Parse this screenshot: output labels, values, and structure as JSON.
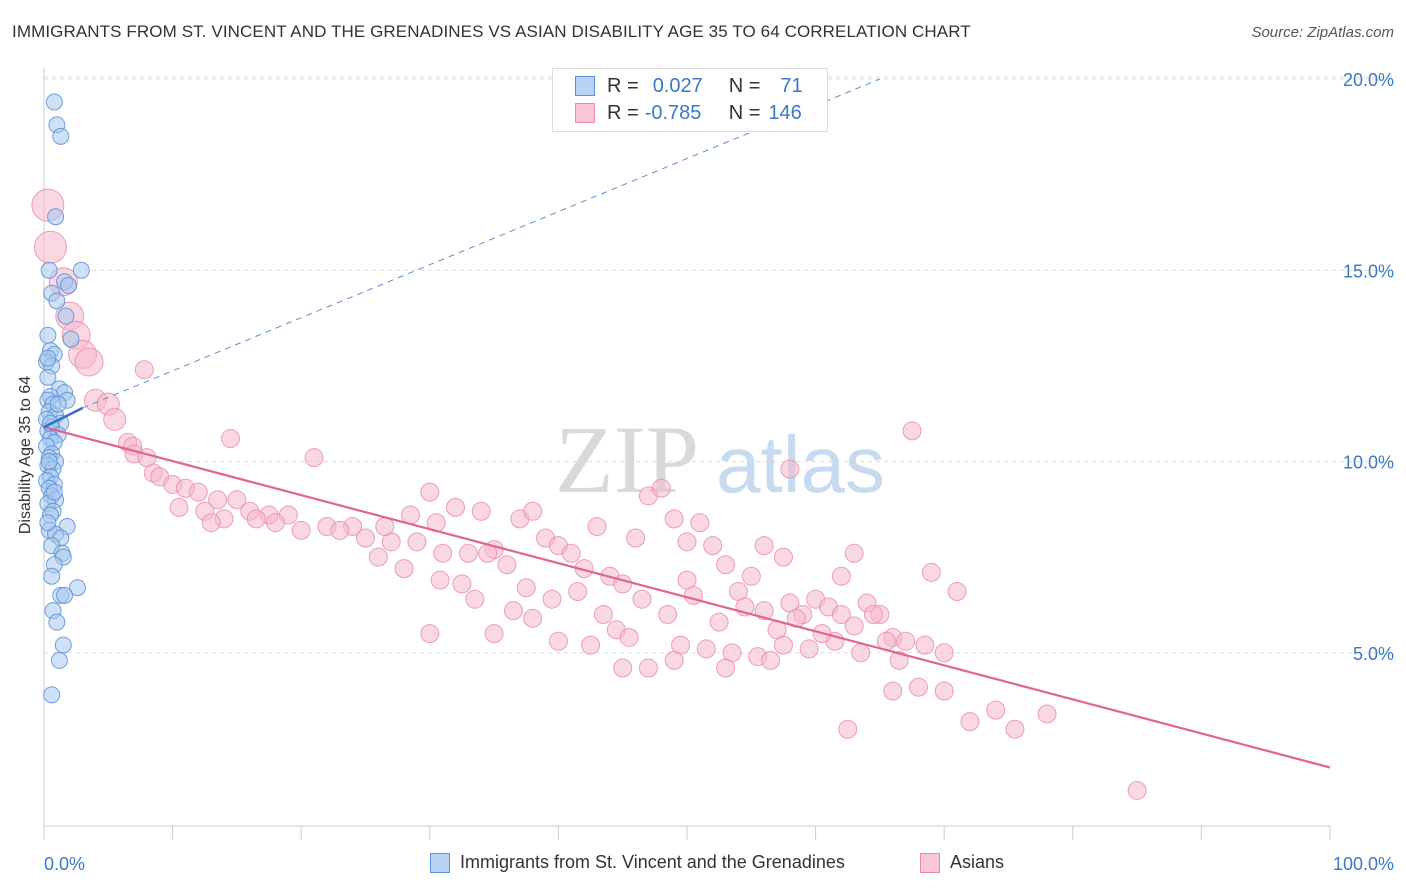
{
  "header": {
    "title": "IMMIGRANTS FROM ST. VINCENT AND THE GRENADINES VS ASIAN DISABILITY AGE 35 TO 64 CORRELATION CHART",
    "source": "Source: ZipAtlas.com"
  },
  "watermark": {
    "zip": "ZIP",
    "atlas": "atlas"
  },
  "legend": {
    "rows": [
      {
        "r_label": "R =",
        "r_value": "0.027",
        "n_label": "N =",
        "n_value": "71"
      },
      {
        "r_label": "R =",
        "r_value": "-0.785",
        "n_label": "N =",
        "n_value": "146"
      }
    ]
  },
  "bottom_legend": {
    "series1": "Immigrants from St. Vincent and the Grenadines",
    "series2": "Asians"
  },
  "colors": {
    "blue_fill": "#a8c8ef",
    "blue_stroke": "#5b8fd6",
    "blue_line": "#2f6fcf",
    "pink_fill": "#f6b8cc",
    "pink_stroke": "#e88aa8",
    "pink_line": "#e0648f",
    "tick_text": "#3a78c8",
    "grid": "#dddddd"
  },
  "chart_data": {
    "type": "scatter",
    "title": "IMMIGRANTS FROM ST. VINCENT AND THE GRENADINES VS ASIAN DISABILITY AGE 35 TO 64 CORRELATION CHART",
    "xlabel": "",
    "ylabel": "Disability Age 35 to 64",
    "xlim": [
      0,
      100
    ],
    "ylim": [
      0,
      20.5
    ],
    "x_tick_labels": [
      "0.0%",
      "100.0%"
    ],
    "y_ticks": [
      5,
      10,
      15,
      20
    ],
    "y_tick_labels": [
      "5.0%",
      "10.0%",
      "15.0%",
      "20.0%"
    ],
    "grid": true,
    "legend_position": "top-center",
    "series": [
      {
        "name": "Immigrants from St. Vincent and the Grenadines",
        "color": "#a8c8ef",
        "trend": {
          "x": [
            0,
            3
          ],
          "y": [
            10.9,
            11.4
          ],
          "dashed_extension_to": [
            65,
            20.0
          ]
        },
        "points": [
          [
            0.8,
            19.4
          ],
          [
            1.0,
            18.8
          ],
          [
            1.3,
            18.5
          ],
          [
            0.9,
            16.4
          ],
          [
            2.9,
            15.0
          ],
          [
            0.4,
            15.0
          ],
          [
            1.6,
            14.7
          ],
          [
            1.9,
            14.6
          ],
          [
            0.6,
            14.4
          ],
          [
            1.0,
            14.2
          ],
          [
            1.7,
            13.8
          ],
          [
            0.3,
            13.3
          ],
          [
            2.1,
            13.2
          ],
          [
            0.5,
            12.9
          ],
          [
            0.8,
            12.8
          ],
          [
            0.2,
            12.6
          ],
          [
            0.6,
            12.5
          ],
          [
            0.3,
            12.2
          ],
          [
            1.2,
            11.9
          ],
          [
            1.6,
            11.8
          ],
          [
            0.5,
            11.7
          ],
          [
            0.3,
            11.6
          ],
          [
            0.7,
            11.5
          ],
          [
            1.8,
            11.6
          ],
          [
            0.4,
            11.3
          ],
          [
            0.9,
            11.2
          ],
          [
            0.2,
            11.1
          ],
          [
            1.3,
            11.0
          ],
          [
            0.6,
            10.9
          ],
          [
            0.3,
            10.8
          ],
          [
            1.1,
            10.7
          ],
          [
            0.5,
            10.6
          ],
          [
            0.8,
            10.5
          ],
          [
            0.2,
            10.4
          ],
          [
            0.6,
            10.2
          ],
          [
            0.4,
            10.1
          ],
          [
            0.9,
            10.0
          ],
          [
            0.3,
            9.9
          ],
          [
            0.7,
            9.8
          ],
          [
            0.5,
            9.6
          ],
          [
            0.2,
            9.5
          ],
          [
            0.8,
            9.4
          ],
          [
            0.4,
            9.3
          ],
          [
            0.6,
            9.1
          ],
          [
            0.9,
            9.0
          ],
          [
            0.3,
            8.9
          ],
          [
            0.7,
            8.7
          ],
          [
            0.5,
            8.6
          ],
          [
            1.8,
            8.3
          ],
          [
            0.4,
            8.2
          ],
          [
            0.9,
            8.1
          ],
          [
            1.3,
            8.0
          ],
          [
            0.6,
            7.8
          ],
          [
            1.4,
            7.6
          ],
          [
            1.5,
            7.5
          ],
          [
            0.8,
            7.3
          ],
          [
            2.6,
            6.7
          ],
          [
            1.3,
            6.5
          ],
          [
            1.6,
            6.5
          ],
          [
            0.7,
            6.1
          ],
          [
            1.0,
            5.8
          ],
          [
            1.5,
            5.2
          ],
          [
            1.2,
            4.8
          ],
          [
            0.6,
            3.9
          ],
          [
            0.3,
            12.7
          ],
          [
            0.5,
            11.0
          ],
          [
            1.1,
            11.5
          ],
          [
            0.4,
            10.0
          ],
          [
            0.8,
            9.2
          ],
          [
            0.3,
            8.4
          ],
          [
            0.6,
            7.0
          ]
        ]
      },
      {
        "name": "Asians",
        "color": "#f6b8cc",
        "trend": {
          "x": [
            0,
            100
          ],
          "y": [
            10.9,
            2.0
          ]
        },
        "points": [
          [
            0.3,
            16.7
          ],
          [
            0.5,
            15.6
          ],
          [
            1.5,
            14.7
          ],
          [
            2.0,
            13.8
          ],
          [
            2.5,
            13.3
          ],
          [
            3.0,
            12.8
          ],
          [
            3.5,
            12.6
          ],
          [
            7.8,
            12.4
          ],
          [
            4.0,
            11.6
          ],
          [
            5.0,
            11.5
          ],
          [
            5.5,
            11.1
          ],
          [
            14.5,
            10.6
          ],
          [
            6.5,
            10.5
          ],
          [
            6.9,
            10.4
          ],
          [
            7.0,
            10.2
          ],
          [
            8.0,
            10.1
          ],
          [
            21.0,
            10.1
          ],
          [
            8.5,
            9.7
          ],
          [
            9.0,
            9.6
          ],
          [
            10.0,
            9.4
          ],
          [
            11.0,
            9.3
          ],
          [
            12.0,
            9.2
          ],
          [
            13.5,
            9.0
          ],
          [
            15.0,
            9.0
          ],
          [
            10.5,
            8.8
          ],
          [
            12.5,
            8.7
          ],
          [
            16.0,
            8.7
          ],
          [
            17.5,
            8.6
          ],
          [
            19.0,
            8.6
          ],
          [
            14.0,
            8.5
          ],
          [
            16.5,
            8.5
          ],
          [
            18.0,
            8.4
          ],
          [
            22.0,
            8.3
          ],
          [
            24.0,
            8.3
          ],
          [
            13.0,
            8.4
          ],
          [
            20.0,
            8.2
          ],
          [
            23.0,
            8.2
          ],
          [
            25.0,
            8.0
          ],
          [
            27.0,
            7.9
          ],
          [
            28.5,
            8.6
          ],
          [
            30.0,
            9.2
          ],
          [
            32.0,
            8.8
          ],
          [
            34.0,
            8.7
          ],
          [
            30.5,
            8.4
          ],
          [
            26.5,
            8.3
          ],
          [
            29.0,
            7.9
          ],
          [
            31.0,
            7.6
          ],
          [
            33.0,
            7.6
          ],
          [
            35.0,
            7.7
          ],
          [
            37.0,
            8.5
          ],
          [
            38.0,
            8.7
          ],
          [
            39.0,
            8.0
          ],
          [
            36.0,
            7.3
          ],
          [
            34.5,
            7.6
          ],
          [
            28.0,
            7.2
          ],
          [
            26.0,
            7.5
          ],
          [
            40.0,
            7.8
          ],
          [
            42.0,
            7.2
          ],
          [
            43.0,
            8.3
          ],
          [
            41.0,
            7.6
          ],
          [
            44.0,
            7.0
          ],
          [
            45.0,
            6.8
          ],
          [
            46.0,
            8.0
          ],
          [
            47.0,
            9.1
          ],
          [
            48.0,
            9.3
          ],
          [
            49.0,
            8.5
          ],
          [
            50.0,
            7.9
          ],
          [
            51.0,
            8.4
          ],
          [
            52.0,
            7.8
          ],
          [
            53.0,
            7.3
          ],
          [
            54.0,
            6.6
          ],
          [
            55.0,
            7.0
          ],
          [
            37.5,
            6.7
          ],
          [
            39.5,
            6.4
          ],
          [
            33.5,
            6.4
          ],
          [
            32.5,
            6.8
          ],
          [
            30.8,
            6.9
          ],
          [
            36.5,
            6.1
          ],
          [
            41.5,
            6.6
          ],
          [
            43.5,
            6.0
          ],
          [
            46.5,
            6.4
          ],
          [
            48.5,
            6.0
          ],
          [
            50.5,
            6.5
          ],
          [
            52.5,
            5.8
          ],
          [
            54.5,
            6.2
          ],
          [
            56.0,
            6.1
          ],
          [
            57.0,
            5.6
          ],
          [
            58.0,
            6.3
          ],
          [
            59.0,
            6.0
          ],
          [
            60.0,
            6.4
          ],
          [
            61.0,
            6.2
          ],
          [
            62.0,
            6.0
          ],
          [
            63.0,
            5.7
          ],
          [
            64.0,
            6.3
          ],
          [
            65.0,
            6.0
          ],
          [
            66.0,
            5.4
          ],
          [
            44.5,
            5.6
          ],
          [
            45.5,
            5.4
          ],
          [
            49.5,
            5.2
          ],
          [
            51.5,
            5.1
          ],
          [
            53.5,
            5.0
          ],
          [
            55.5,
            4.9
          ],
          [
            57.5,
            5.2
          ],
          [
            59.5,
            5.1
          ],
          [
            61.5,
            5.3
          ],
          [
            63.5,
            5.0
          ],
          [
            65.5,
            5.3
          ],
          [
            67.0,
            5.3
          ],
          [
            68.5,
            5.2
          ],
          [
            70.0,
            5.0
          ],
          [
            56.5,
            4.8
          ],
          [
            49.0,
            4.8
          ],
          [
            47.0,
            4.6
          ],
          [
            53.0,
            4.6
          ],
          [
            40.0,
            5.3
          ],
          [
            35.0,
            5.5
          ],
          [
            30.0,
            5.5
          ],
          [
            38.0,
            5.9
          ],
          [
            42.5,
            5.2
          ],
          [
            66.5,
            4.8
          ],
          [
            68.0,
            4.1
          ],
          [
            70.0,
            4.0
          ],
          [
            72.0,
            3.2
          ],
          [
            74.0,
            3.5
          ],
          [
            75.5,
            3.0
          ],
          [
            78.0,
            3.4
          ],
          [
            62.5,
            3.0
          ],
          [
            85.0,
            1.4
          ],
          [
            67.5,
            10.8
          ],
          [
            58.0,
            9.8
          ],
          [
            63.0,
            7.6
          ],
          [
            57.5,
            7.5
          ],
          [
            56.0,
            7.8
          ],
          [
            62.0,
            7.0
          ],
          [
            69.0,
            7.1
          ],
          [
            71.0,
            6.6
          ],
          [
            64.5,
            6.0
          ],
          [
            60.5,
            5.5
          ],
          [
            45.0,
            4.6
          ],
          [
            58.5,
            5.9
          ],
          [
            66.0,
            4.0
          ],
          [
            50.0,
            6.9
          ]
        ]
      }
    ]
  }
}
